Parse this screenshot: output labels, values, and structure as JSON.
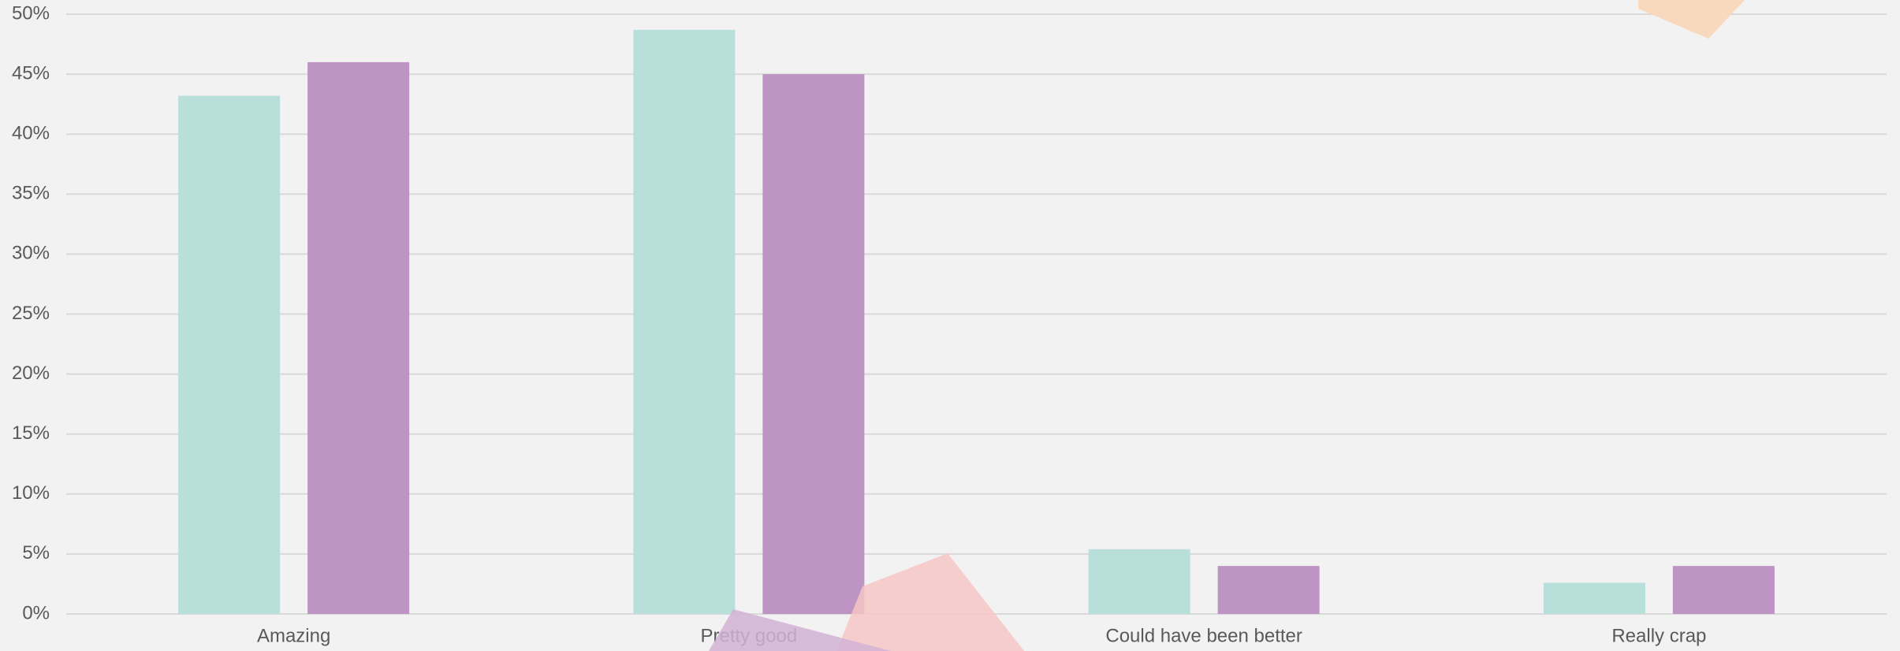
{
  "chart_data": {
    "type": "bar",
    "categories": [
      "Amazing",
      "Pretty good",
      "Could have been better",
      "Really crap"
    ],
    "series": [
      {
        "color": "#b9dfdb",
        "values": [
          43.2,
          48.7,
          5.4,
          2.6
        ]
      },
      {
        "color": "#bd94c3",
        "values": [
          46,
          45,
          4,
          4
        ]
      }
    ],
    "ylim": [
      0,
      50
    ],
    "yticks": [
      {
        "value": 0,
        "label": "0%"
      },
      {
        "value": 5,
        "label": "5%"
      },
      {
        "value": 10,
        "label": "10%"
      },
      {
        "value": 15,
        "label": "15%"
      },
      {
        "value": 20,
        "label": "20%"
      },
      {
        "value": 25,
        "label": "25%"
      },
      {
        "value": 30,
        "label": "30%"
      },
      {
        "value": 35,
        "label": "35%"
      },
      {
        "value": 40,
        "label": "40%"
      },
      {
        "value": 45,
        "label": "45%"
      },
      {
        "value": 50,
        "label": "50%"
      }
    ],
    "grid": true
  }
}
